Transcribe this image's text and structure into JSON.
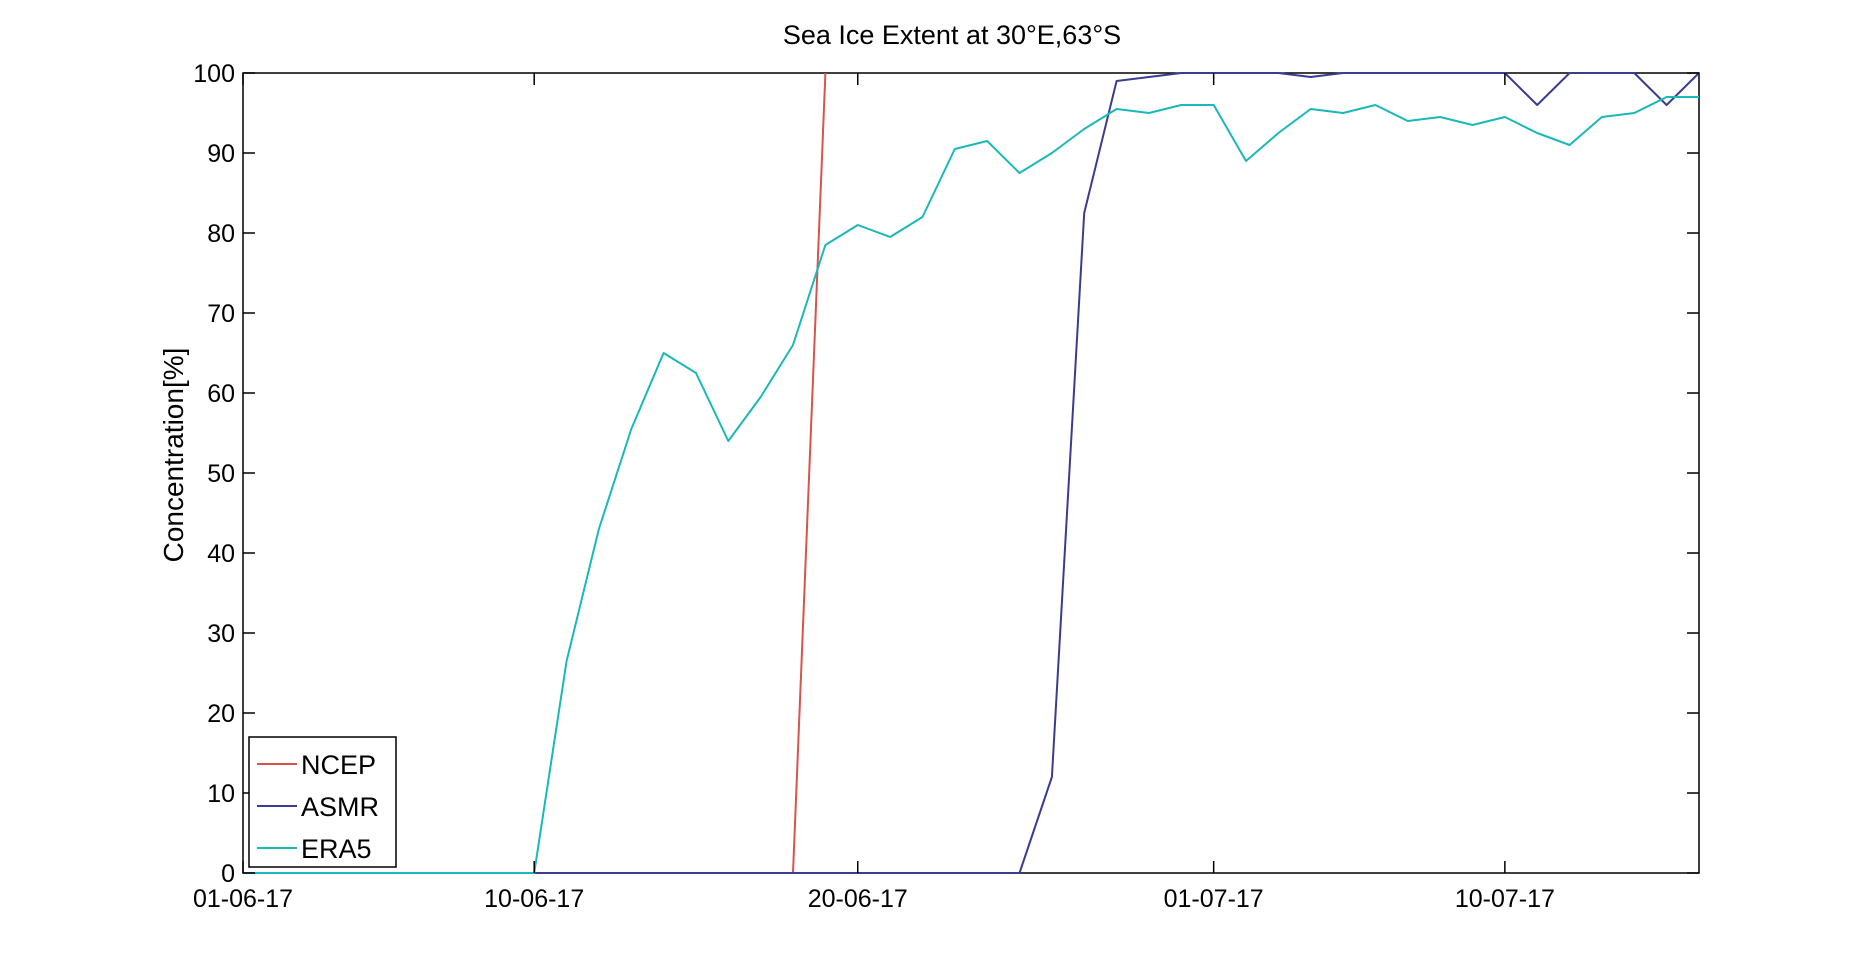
{
  "chart_data": {
    "type": "line",
    "title": "Sea Ice Extent at 30°E,63°S",
    "xlabel": "",
    "ylabel": "Concentration[%]",
    "ylim": [
      0,
      100
    ],
    "yticks": [
      0,
      10,
      20,
      30,
      40,
      50,
      60,
      70,
      80,
      90,
      100
    ],
    "x_dates": [
      "2017-06-01",
      "2017-06-02",
      "2017-06-03",
      "2017-06-04",
      "2017-06-05",
      "2017-06-06",
      "2017-06-07",
      "2017-06-08",
      "2017-06-09",
      "2017-06-10",
      "2017-06-11",
      "2017-06-12",
      "2017-06-13",
      "2017-06-14",
      "2017-06-15",
      "2017-06-16",
      "2017-06-17",
      "2017-06-18",
      "2017-06-19",
      "2017-06-20",
      "2017-06-21",
      "2017-06-22",
      "2017-06-23",
      "2017-06-24",
      "2017-06-25",
      "2017-06-26",
      "2017-06-27",
      "2017-06-28",
      "2017-06-29",
      "2017-06-30",
      "2017-07-01",
      "2017-07-02",
      "2017-07-03",
      "2017-07-04",
      "2017-07-05",
      "2017-07-06",
      "2017-07-07",
      "2017-07-08",
      "2017-07-09",
      "2017-07-10",
      "2017-07-11",
      "2017-07-12",
      "2017-07-13",
      "2017-07-14",
      "2017-07-15",
      "2017-07-16"
    ],
    "xlim": [
      "2017-06-01",
      "2017-07-16"
    ],
    "xtick_labels": [
      "01-06-17",
      "10-06-17",
      "20-06-17",
      "01-07-17",
      "10-07-17"
    ],
    "xtick_dates": [
      "2017-06-01",
      "2017-06-10",
      "2017-06-20",
      "2017-07-01",
      "2017-07-10"
    ],
    "grid": false,
    "legend_position": "bottom-left",
    "series": [
      {
        "name": "NCEP",
        "color": "#d9534a",
        "x": [
          "2017-06-01",
          "2017-06-18",
          "2017-06-19"
        ],
        "values": [
          0,
          0,
          100
        ]
      },
      {
        "name": "ASMR",
        "color": "#3a3d8f",
        "values": [
          0,
          0,
          0,
          0,
          0,
          0,
          0,
          0,
          0,
          0,
          0,
          0,
          0,
          0,
          0,
          0,
          0,
          0,
          0,
          0,
          0,
          0,
          0,
          0,
          0,
          12,
          82.5,
          99,
          99.5,
          100,
          100,
          100,
          100,
          99.5,
          100,
          100,
          100,
          100,
          100,
          100,
          96,
          100,
          100,
          100,
          96,
          100
        ]
      },
      {
        "name": "ERA5",
        "color": "#1ab8b8",
        "values": [
          0,
          0,
          0,
          0,
          0,
          0,
          0,
          0,
          0,
          0,
          26.5,
          43,
          55.5,
          65,
          62.5,
          54,
          59.5,
          66,
          78.5,
          81,
          79.5,
          82,
          90.5,
          91.5,
          87.5,
          90,
          93,
          95.5,
          95,
          96,
          96,
          89,
          92.5,
          95.5,
          95,
          96,
          94,
          94.5,
          93.5,
          94.5,
          92.5,
          91,
          94.5,
          95,
          97,
          97
        ]
      }
    ]
  }
}
